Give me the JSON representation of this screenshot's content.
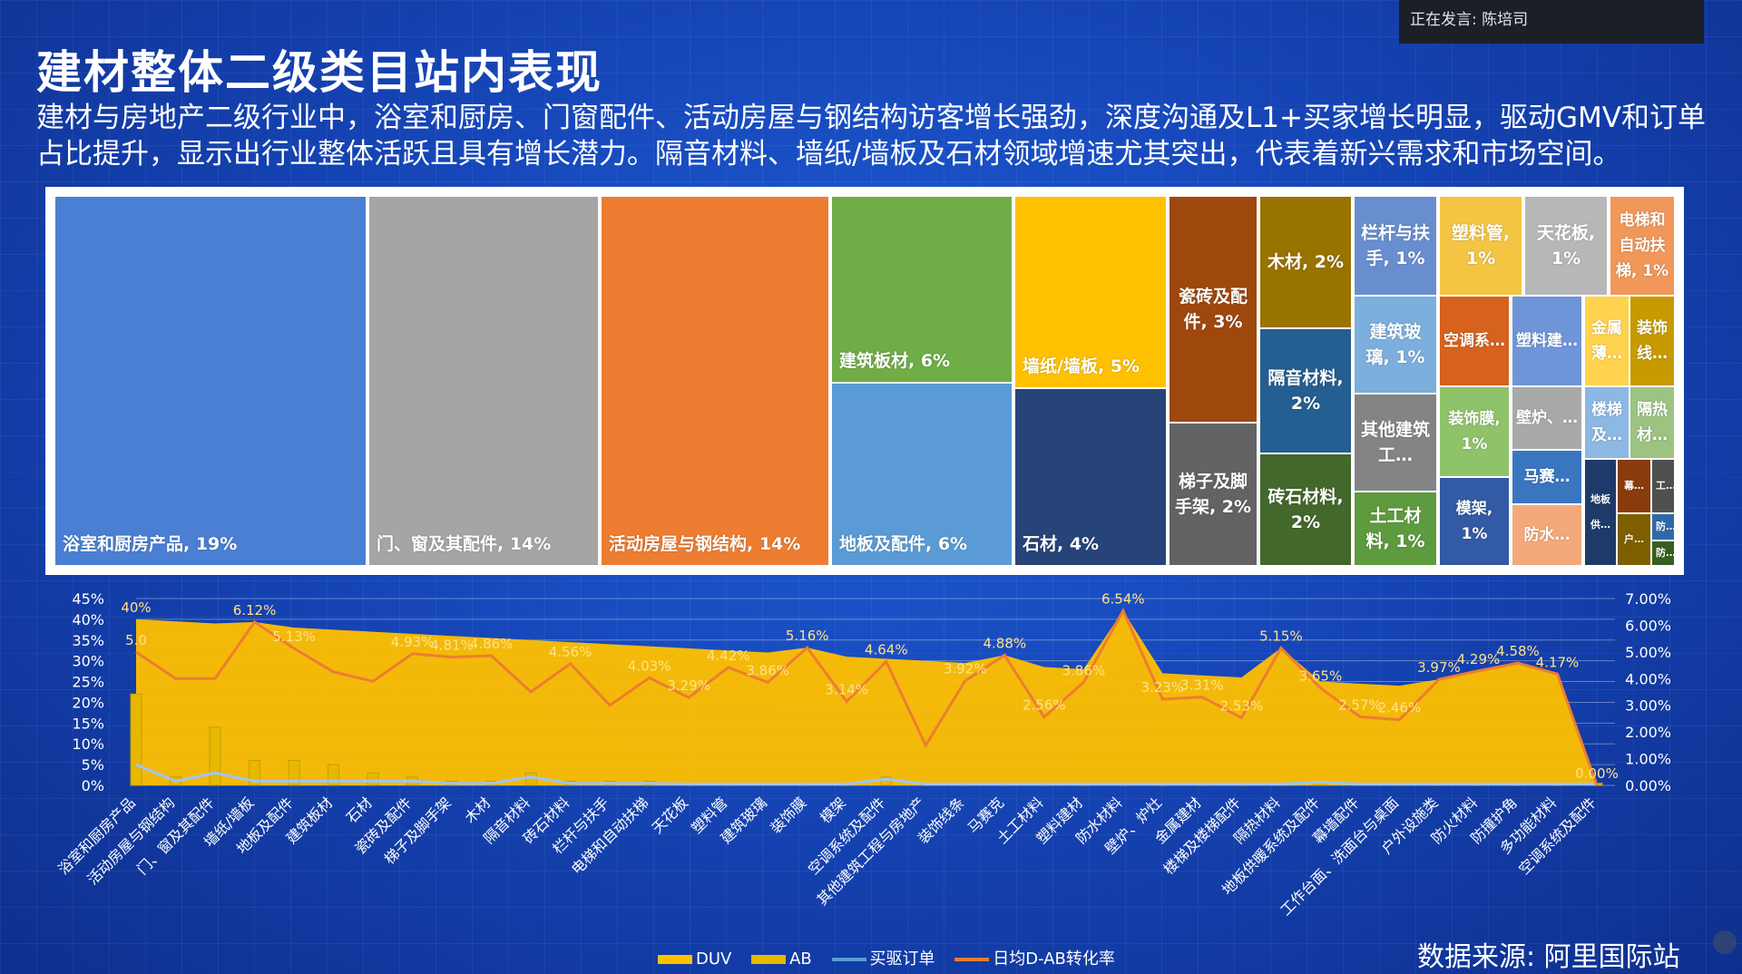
{
  "header": {
    "title": "建材整体二级类目站内表现",
    "description": "建材与房地产二级行业中，浴室和厨房、门窗配件、活动房屋与钢结构访客增长强劲，深度沟通及L1+买家增长明显，驱动GMV和订单占比提升，显示出行业整体活跃且具有增长潜力。隔音材料、墙纸/墙板及石材领域增速尤其突出，代表着新兴需求和市场空间。"
  },
  "speaker": {
    "label": "正在发言: 陈培司"
  },
  "footer": {
    "source": "数据来源:  阿里国际站"
  },
  "treemap": [
    {
      "label": "浴室和厨房产品, 19%",
      "color": "#4a7fd4"
    },
    {
      "label": "门、窗及其配件, 14%",
      "color": "#a5a5a5"
    },
    {
      "label": "活动房屋与钢结构, 14%",
      "color": "#ed7d31"
    },
    {
      "label": "建筑板材, 6%",
      "color": "#70ad47"
    },
    {
      "label": "地板及配件, 6%",
      "color": "#5b9bd5"
    },
    {
      "label": "墙纸/墙板, 5%",
      "color": "#ffc000"
    },
    {
      "label": "石材, 4%",
      "color": "#264478"
    },
    {
      "label": "瓷砖及配件, 3%",
      "color": "#9e480e"
    },
    {
      "label": "梯子及脚手架, 2%",
      "color": "#636363"
    },
    {
      "label": "木材, 2%",
      "color": "#997300"
    },
    {
      "label": "隔音材料, 2%",
      "color": "#255e91"
    },
    {
      "label": "砖石材料, 2%",
      "color": "#43682b"
    },
    {
      "label": "栏杆与扶手, 1%",
      "color": "#698ed0"
    },
    {
      "label": "建筑玻璃, 1%",
      "color": "#7cafdd"
    },
    {
      "label": "其他建筑工…",
      "color": "#848484"
    },
    {
      "label": "土工材料, 1%",
      "color": "#5e9a3e"
    },
    {
      "label": "塑料管, 1%",
      "color": "#f4c542"
    },
    {
      "label": "天花板, 1%",
      "color": "#b7b7b7"
    },
    {
      "label": "电梯和自动扶梯, 1%",
      "color": "#f1975a"
    },
    {
      "label": "空调系…",
      "color": "#d6621e"
    },
    {
      "label": "塑料建…",
      "color": "#6f95d8"
    },
    {
      "label": "金属薄…",
      "color": "#ffd34d"
    },
    {
      "label": "装饰线…",
      "color": "#c79a00"
    },
    {
      "label": "装饰膜, 1%",
      "color": "#8fc36a"
    },
    {
      "label": "模架, 1%",
      "color": "#335aa4"
    },
    {
      "label": "壁炉、…",
      "color": "#a9a9a9"
    },
    {
      "label": "楼梯及…",
      "color": "#8cb8e3"
    },
    {
      "label": "隔热材…",
      "color": "#9dc383"
    },
    {
      "label": "马赛…",
      "color": "#3a76c0"
    },
    {
      "label": "防水…",
      "color": "#f4a97a"
    },
    {
      "label": "地板供…",
      "color": "#1d3a6b"
    },
    {
      "label": "幕…",
      "color": "#8a3b0b"
    },
    {
      "label": "工…",
      "color": "#505050"
    },
    {
      "label": "户…",
      "color": "#7d5f00"
    },
    {
      "label": "防…",
      "color": "#2f6aa8"
    },
    {
      "label": "防…",
      "color": "#375f20"
    }
  ],
  "chart_data": {
    "type": "area",
    "categories": [
      "浴室和厨房产品",
      "活动房屋与钢结构",
      "门、窗及其配件",
      "墙纸/墙板",
      "地板及配件",
      "建筑板材",
      "石材",
      "瓷砖及配件",
      "梯子及脚手架",
      "木材",
      "隔音材料",
      "砖石材料",
      "栏杆与扶手",
      "电梯和自动扶梯",
      "天花板",
      "塑料管",
      "建筑玻璃",
      "装饰膜",
      "模架",
      "空调系统及配件",
      "其他建筑工程与房地产",
      "装饰线条",
      "马赛克",
      "土工材料",
      "塑料建材",
      "防水材料",
      "壁炉、炉灶",
      "金属建材",
      "楼梯及楼梯配件",
      "隔热材料",
      "地板供暖系统及配件",
      "幕墙配件",
      "工作台面、洗面台与桌面",
      "户外设施类",
      "防火材料",
      "防撞护角",
      "多功能材料",
      "空调系统及配件"
    ],
    "y_left_ticks": [
      "45%",
      "40%",
      "35%",
      "30%",
      "25%",
      "20%",
      "15%",
      "10%",
      "5%",
      "0%"
    ],
    "y_right_ticks": [
      "7.00%",
      "6.00%",
      "5.00%",
      "4.00%",
      "3.00%",
      "2.00%",
      "1.00%",
      "0.00%"
    ],
    "ylim_left": [
      0,
      45
    ],
    "ylim_right": [
      0,
      7
    ],
    "series": [
      {
        "name": "DUV",
        "axis": "left",
        "values": [
          40,
          39.5,
          39,
          38.5,
          38,
          37.5,
          37,
          36.5,
          36,
          35.5,
          35,
          34.5,
          34,
          33.5,
          33,
          32.5,
          32,
          31.5,
          31,
          30.5,
          30,
          29.5,
          29,
          28.5,
          28,
          27.5,
          27,
          26.5,
          26,
          25.5,
          25,
          24.5,
          24,
          23.5,
          23,
          22.5,
          22,
          21.5
        ],
        "color": "#ffc000"
      },
      {
        "name": "AB",
        "axis": "left",
        "values": [
          22,
          2,
          14,
          6,
          6,
          5,
          3,
          2,
          1,
          1,
          3,
          1,
          1,
          1,
          0.5,
          0.5,
          0.5,
          0.5,
          0.5,
          2,
          0.5,
          0.5,
          0.5,
          0.5,
          0.5,
          0.5,
          0.5,
          0.5,
          0.5,
          0.5,
          1,
          0.5,
          0.5,
          0.5,
          0.5,
          0.5,
          0.5,
          0.5
        ],
        "color": "#e6b800"
      },
      {
        "name": "买驱订单",
        "axis": "left",
        "values": [
          5,
          1,
          3,
          1,
          1,
          1,
          1,
          1,
          0.5,
          0.5,
          2,
          0.5,
          0.5,
          0.5,
          0.3,
          0.3,
          0.3,
          0.3,
          0.3,
          1.5,
          0.3,
          0.3,
          0.3,
          0.3,
          0.3,
          0.3,
          0.3,
          0.3,
          0.3,
          0.3,
          0.8,
          0.3,
          0.3,
          0.3,
          0.3,
          0.3,
          0.3,
          0.3
        ],
        "color": "#5b9bd5"
      },
      {
        "name": "日均D-AB转化率",
        "axis": "right",
        "values": [
          5.0,
          4.0,
          4.0,
          6.12,
          5.13,
          4.25,
          3.9,
          4.93,
          4.81,
          4.86,
          3.5,
          4.56,
          3.0,
          4.03,
          3.29,
          4.42,
          3.86,
          5.16,
          3.14,
          4.64,
          1.5,
          3.92,
          4.88,
          2.56,
          3.86,
          6.54,
          3.23,
          3.31,
          2.53,
          5.15,
          3.65,
          2.57,
          2.46,
          3.97,
          4.29,
          4.58,
          4.17,
          0.0
        ],
        "color": "#ed7d31"
      }
    ],
    "data_labels": [
      {
        "text": "40%",
        "i": 0,
        "axis": "left",
        "v": 40
      },
      {
        "text": "5.0",
        "i": 0,
        "axis": "right",
        "v": 5.0
      },
      {
        "text": "6.12%",
        "i": 3,
        "axis": "right",
        "v": 6.12
      },
      {
        "text": "5.13%",
        "i": 4,
        "axis": "right",
        "v": 5.13
      },
      {
        "text": "4.93%",
        "i": 7,
        "axis": "right",
        "v": 4.93
      },
      {
        "text": "4.81%",
        "i": 8,
        "axis": "right",
        "v": 4.81
      },
      {
        "text": "4.86%",
        "i": 9,
        "axis": "right",
        "v": 4.86
      },
      {
        "text": "4.56%",
        "i": 11,
        "axis": "right",
        "v": 4.56
      },
      {
        "text": "4.03%",
        "i": 13,
        "axis": "right",
        "v": 4.03
      },
      {
        "text": "3.29%",
        "i": 14,
        "axis": "right",
        "v": 3.29
      },
      {
        "text": "4.42%",
        "i": 15,
        "axis": "right",
        "v": 4.42
      },
      {
        "text": "3.86%",
        "i": 16,
        "axis": "right",
        "v": 3.86
      },
      {
        "text": "5.16%",
        "i": 17,
        "axis": "right",
        "v": 5.16
      },
      {
        "text": "3.14%",
        "i": 18,
        "axis": "right",
        "v": 3.14
      },
      {
        "text": "4.64%",
        "i": 19,
        "axis": "right",
        "v": 4.64
      },
      {
        "text": "3.92%",
        "i": 21,
        "axis": "right",
        "v": 3.92
      },
      {
        "text": "4.88%",
        "i": 22,
        "axis": "right",
        "v": 4.88
      },
      {
        "text": "2.56%",
        "i": 23,
        "axis": "right",
        "v": 2.56
      },
      {
        "text": "3.86%",
        "i": 24,
        "axis": "right",
        "v": 3.86
      },
      {
        "text": "6.54%",
        "i": 25,
        "axis": "right",
        "v": 6.54
      },
      {
        "text": "3.23%",
        "i": 26,
        "axis": "right",
        "v": 3.23
      },
      {
        "text": "3.31%",
        "i": 27,
        "axis": "right",
        "v": 3.31
      },
      {
        "text": "2.53%",
        "i": 28,
        "axis": "right",
        "v": 2.53
      },
      {
        "text": "5.15%",
        "i": 29,
        "axis": "right",
        "v": 5.15
      },
      {
        "text": "3.65%",
        "i": 30,
        "axis": "right",
        "v": 3.65
      },
      {
        "text": "2.57%",
        "i": 31,
        "axis": "right",
        "v": 2.57
      },
      {
        "text": "2.46%",
        "i": 32,
        "axis": "right",
        "v": 2.46
      },
      {
        "text": "3.97%",
        "i": 33,
        "axis": "right",
        "v": 3.97
      },
      {
        "text": "4.29%",
        "i": 34,
        "axis": "right",
        "v": 4.29
      },
      {
        "text": "4.58%",
        "i": 35,
        "axis": "right",
        "v": 4.58
      },
      {
        "text": "4.17%",
        "i": 36,
        "axis": "right",
        "v": 4.17
      },
      {
        "text": "0.00%",
        "i": 37,
        "axis": "right",
        "v": 0.0
      }
    ],
    "grid": true,
    "legend": "bottom"
  }
}
